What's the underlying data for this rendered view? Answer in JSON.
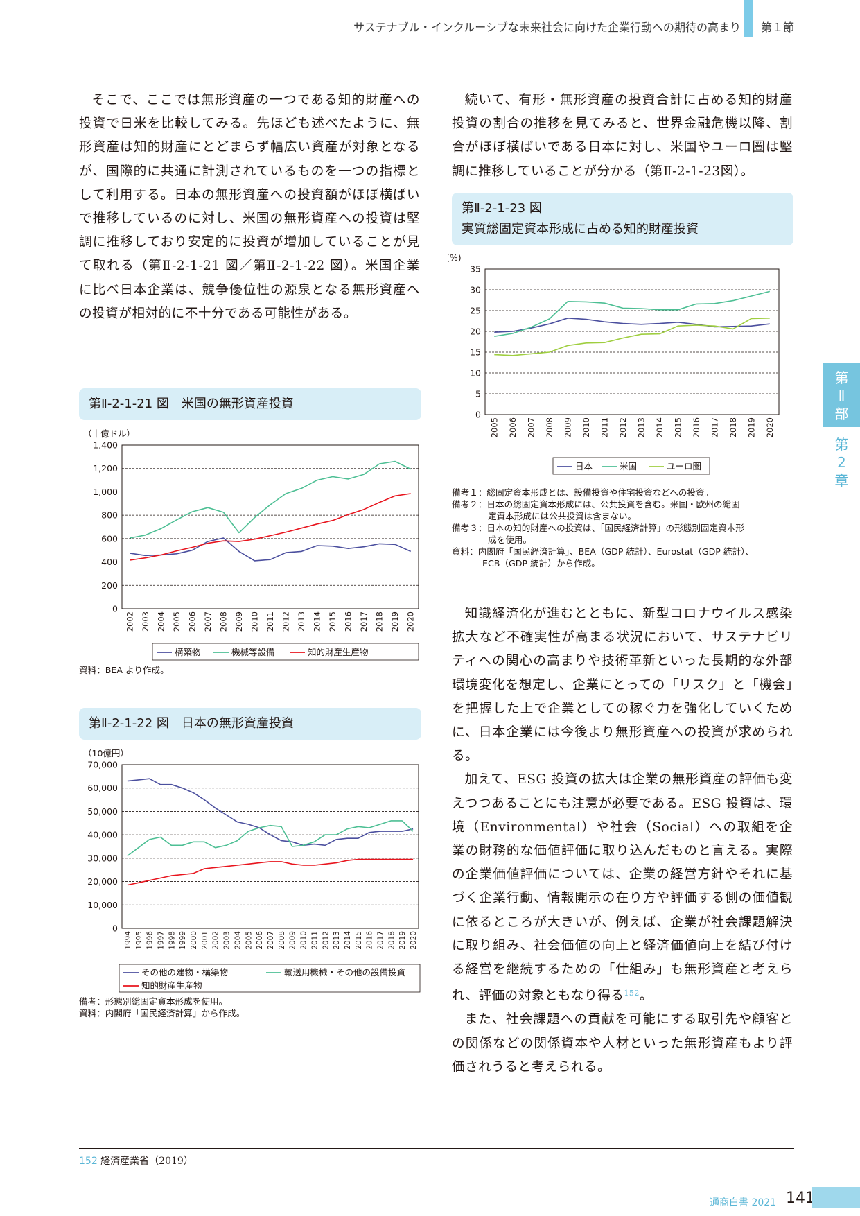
{
  "header": {
    "title": "サステナブル・インクルーシブな未来社会に向けた企業行動への期待の高まり",
    "section": "第１節"
  },
  "side_tab": {
    "part": [
      "第",
      "Ⅱ",
      "部"
    ],
    "chapter": [
      "第",
      "2",
      "章"
    ]
  },
  "body": {
    "left_para": "そこで、ここでは無形資産の一つである知的財産への投資で日米を比較してみる。先ほども述べたように、無形資産は知的財産にとどまらず幅広い資産が対象となるが、国際的に共通に計測されているものを一つの指標として利用する。日本の無形資産への投資額がほぼ横ばいで推移しているのに対し、米国の無形資産への投資は堅調に推移しており安定的に投資が増加していることが見て取れる（第Ⅱ-2-1-21 図／第Ⅱ-2-1-22 図）。米国企業に比べ日本企業は、競争優位性の源泉となる無形資産への投資が相対的に不十分である可能性がある。",
    "right_para1": "続いて、有形・無形資産の投資合計に占める知的財産投資の割合の推移を見てみると、世界金融危機以降、割合がほぼ横ばいである日本に対し、米国やユーロ圏は堅調に推移していることが分かる（第Ⅱ-2-1-23図）。",
    "right_para2": "知識経済化が進むとともに、新型コロナウイルス感染拡大など不確実性が高まる状況において、サステナビリティへの関心の高まりや技術革新といった長期的な外部環境変化を想定し、企業にとっての「リスク」と「機会」を把握した上で企業としての稼ぐ力を強化していくために、日本企業には今後より無形資産への投資が求められる。",
    "right_para3": "加えて、ESG 投資の拡大は企業の無形資産の評価も変えつつあることにも注意が必要である。ESG 投資は、環境（Environmental）や社会（Social）への取組を企業の財務的な価値評価に取り込んだものと言える。実際の企業価値評価については、企業の経営方針やそれに基づく企業行動、情報開示の在り方や評価する側の価値観に依るところが大きいが、例えば、企業が社会課題解決に取り組み、社会価値の向上と経済価値向上を結び付ける経営を継続するための「仕組み」も無形資産と考えられ、評価の対象ともなり得る",
    "right_para3_sup": "152",
    "right_para3_end": "。",
    "right_para4": "また、社会課題への貢献を可能にする取引先や顧客との関係などの関係資本や人材といった無形資産もより評価されうると考えられる。"
  },
  "figures": {
    "fig21": {
      "label": "第Ⅱ-2-1-21 図",
      "title": "米国の無形資産投資",
      "note": "資料：BEA より作成。"
    },
    "fig22": {
      "label": "第Ⅱ-2-1-22 図",
      "title": "日本の無形資産投資",
      "notes": [
        "備考：形態別総固定資本形成を使用。",
        "資料：内閣府「国民経済計算」から作成。"
      ]
    },
    "fig23": {
      "label": "第Ⅱ-2-1-23 図",
      "title": "実質総固定資本形成に占める知的財産投資",
      "notes": [
        {
          "head": "備考１：総固定資本形成とは、設備投資や住宅投資などへの投資。"
        },
        {
          "head": "備考２：日本の総固定資本形成には、公共投資を含む。米国・欧州の総固",
          "cont": "定資本形成には公共投資は含まない。"
        },
        {
          "head": "備考３：日本の知的財産への投資は、「国民経済計算」の形態別固定資本形",
          "cont": "成を使用。"
        },
        {
          "head": "資料：内閣府「国民経済計算」、BEA（GDP 統計）、Eurostat（GDP 統計）、",
          "cont": "ECB（GDP 統計）から作成。"
        }
      ]
    }
  },
  "chart_data": [
    {
      "id": "fig21",
      "type": "line",
      "unit_label": "（十億ドル）",
      "ylim": [
        0,
        1400
      ],
      "yticks": [
        0,
        200,
        400,
        600,
        800,
        1000,
        1200,
        1400
      ],
      "grid": true,
      "legend": "bottom",
      "x": [
        "2002",
        "2003",
        "2004",
        "2005",
        "2006",
        "2007",
        "2008",
        "2009",
        "2010",
        "2011",
        "2012",
        "2013",
        "2014",
        "2015",
        "2016",
        "2017",
        "2018",
        "2019",
        "2020"
      ],
      "series": [
        {
          "name": "構築物",
          "color": "#4b4f9e",
          "values": [
            475,
            455,
            460,
            470,
            500,
            575,
            605,
            490,
            410,
            420,
            480,
            490,
            540,
            535,
            515,
            530,
            555,
            550,
            490
          ]
        },
        {
          "name": "機械等設備",
          "color": "#4dbf94",
          "values": [
            605,
            630,
            685,
            760,
            830,
            865,
            825,
            650,
            780,
            890,
            985,
            1030,
            1100,
            1130,
            1110,
            1150,
            1240,
            1260,
            1195
          ]
        },
        {
          "name": "知的財産生産物",
          "color": "#e8141d",
          "values": [
            415,
            435,
            460,
            495,
            525,
            560,
            580,
            575,
            595,
            625,
            655,
            690,
            725,
            755,
            805,
            850,
            910,
            965,
            985
          ]
        }
      ]
    },
    {
      "id": "fig22",
      "type": "line",
      "unit_label": "（10億円）",
      "ylim": [
        0,
        70000
      ],
      "yticks": [
        0,
        10000,
        20000,
        30000,
        40000,
        50000,
        60000,
        70000
      ],
      "ytick_labels": [
        "0",
        "10,000",
        "20,000",
        "30,000",
        "40,000",
        "50,000",
        "60,000",
        "70,000"
      ],
      "grid": true,
      "legend": "bottom",
      "x": [
        "1994",
        "1995",
        "1996",
        "1997",
        "1998",
        "1999",
        "2000",
        "2001",
        "2002",
        "2003",
        "2004",
        "2005",
        "2006",
        "2007",
        "2008",
        "2009",
        "2010",
        "2011",
        "2012",
        "2013",
        "2014",
        "2015",
        "2016",
        "2017",
        "2018",
        "2019",
        "2020"
      ],
      "series": [
        {
          "name": "その他の建物・構築物",
          "color": "#4b4f9e",
          "values": [
            63000,
            63500,
            64000,
            61500,
            61500,
            60000,
            58000,
            55000,
            51500,
            48500,
            45500,
            44500,
            43000,
            40000,
            37500,
            37000,
            35500,
            36000,
            35500,
            38000,
            38500,
            38500,
            41000,
            41500,
            41500,
            41500,
            42500
          ]
        },
        {
          "name": "輸送用機械・その他の設備投資",
          "color": "#4dbf94",
          "values": [
            31000,
            34500,
            38000,
            39000,
            35500,
            35500,
            37000,
            37000,
            34500,
            35500,
            37500,
            41500,
            43000,
            44000,
            43500,
            35000,
            35500,
            37000,
            40000,
            40000,
            42500,
            43500,
            43000,
            44500,
            46000,
            46000,
            41500
          ]
        },
        {
          "name": "知的財産生産物",
          "color": "#e8141d",
          "values": [
            18500,
            19500,
            20500,
            21500,
            22500,
            23000,
            23500,
            25500,
            26000,
            26500,
            27000,
            27500,
            28000,
            28500,
            28500,
            27500,
            27000,
            27000,
            27500,
            28000,
            29000,
            29500,
            29500,
            29500,
            29500,
            29500,
            29500
          ]
        }
      ]
    },
    {
      "id": "fig23",
      "type": "line",
      "unit_label": "(%)",
      "ylim": [
        0,
        35
      ],
      "yticks": [
        0,
        5,
        10,
        15,
        20,
        25,
        30,
        35
      ],
      "grid": true,
      "legend": "bottom",
      "x": [
        "2005",
        "2006",
        "2007",
        "2008",
        "2009",
        "2010",
        "2011",
        "2012",
        "2013",
        "2014",
        "2015",
        "2016",
        "2017",
        "2018",
        "2019",
        "2020"
      ],
      "series": [
        {
          "name": "日本",
          "color": "#4b4f9e",
          "values": [
            19.8,
            20.0,
            20.8,
            21.8,
            23.2,
            22.9,
            22.3,
            21.9,
            21.7,
            21.9,
            22.2,
            21.7,
            21.1,
            21.2,
            21.3,
            21.8
          ]
        },
        {
          "name": "米国",
          "color": "#4dbf94",
          "values": [
            18.8,
            19.5,
            21.0,
            23.0,
            27.2,
            27.1,
            26.8,
            25.6,
            25.5,
            25.2,
            25.2,
            26.6,
            26.7,
            27.4,
            28.5,
            29.6
          ]
        },
        {
          "name": "ユーロ圏",
          "color": "#9fce3f",
          "values": [
            14.4,
            14.2,
            14.6,
            15.0,
            16.6,
            17.2,
            17.3,
            18.4,
            19.3,
            19.4,
            21.3,
            21.5,
            21.3,
            20.6,
            23.1,
            23.2
          ]
        }
      ]
    }
  ],
  "footer": {
    "footnote_num": "152",
    "footnote_ref": "経済産業省（2019）",
    "publication": "通商白書 2021",
    "page": "141"
  }
}
